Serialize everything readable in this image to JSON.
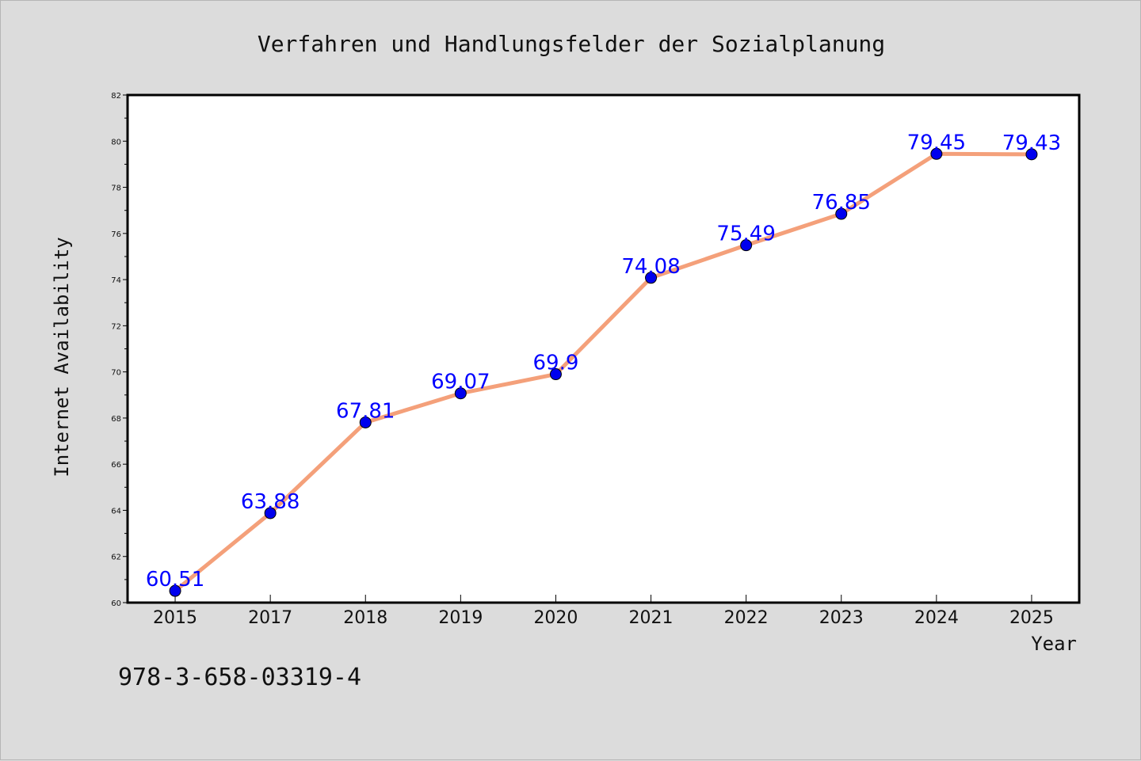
{
  "footer_text": "978-3-658-03319-4",
  "colors": {
    "background": "#dcdcdc",
    "plot_background": "#ffffff",
    "line": "#f4a07a",
    "marker": "#0000ee",
    "data_label": "#0000ff"
  },
  "chart_data": {
    "type": "line",
    "title": "Verfahren und Handlungsfelder der Sozialplanung",
    "xlabel": "Year",
    "ylabel": "Internet Availability",
    "categories": [
      "2015",
      "2017",
      "2018",
      "2019",
      "2020",
      "2021",
      "2022",
      "2023",
      "2024",
      "2025"
    ],
    "series": [
      {
        "values": [
          60.51,
          63.88,
          67.81,
          69.07,
          69.9,
          74.08,
          75.49,
          76.85,
          79.45,
          79.43
        ],
        "labels": [
          "60.51",
          "63.88",
          "67.81",
          "69.07",
          "69.9",
          "74.08",
          "75.49",
          "76.85",
          "79.45",
          "79.43"
        ]
      }
    ],
    "ylim": [
      60,
      82
    ],
    "yticks": [
      "60",
      "62",
      "64",
      "66",
      "68",
      "70",
      "72",
      "74",
      "76",
      "78",
      "80",
      "82"
    ],
    "grid": false,
    "legend": "none"
  }
}
